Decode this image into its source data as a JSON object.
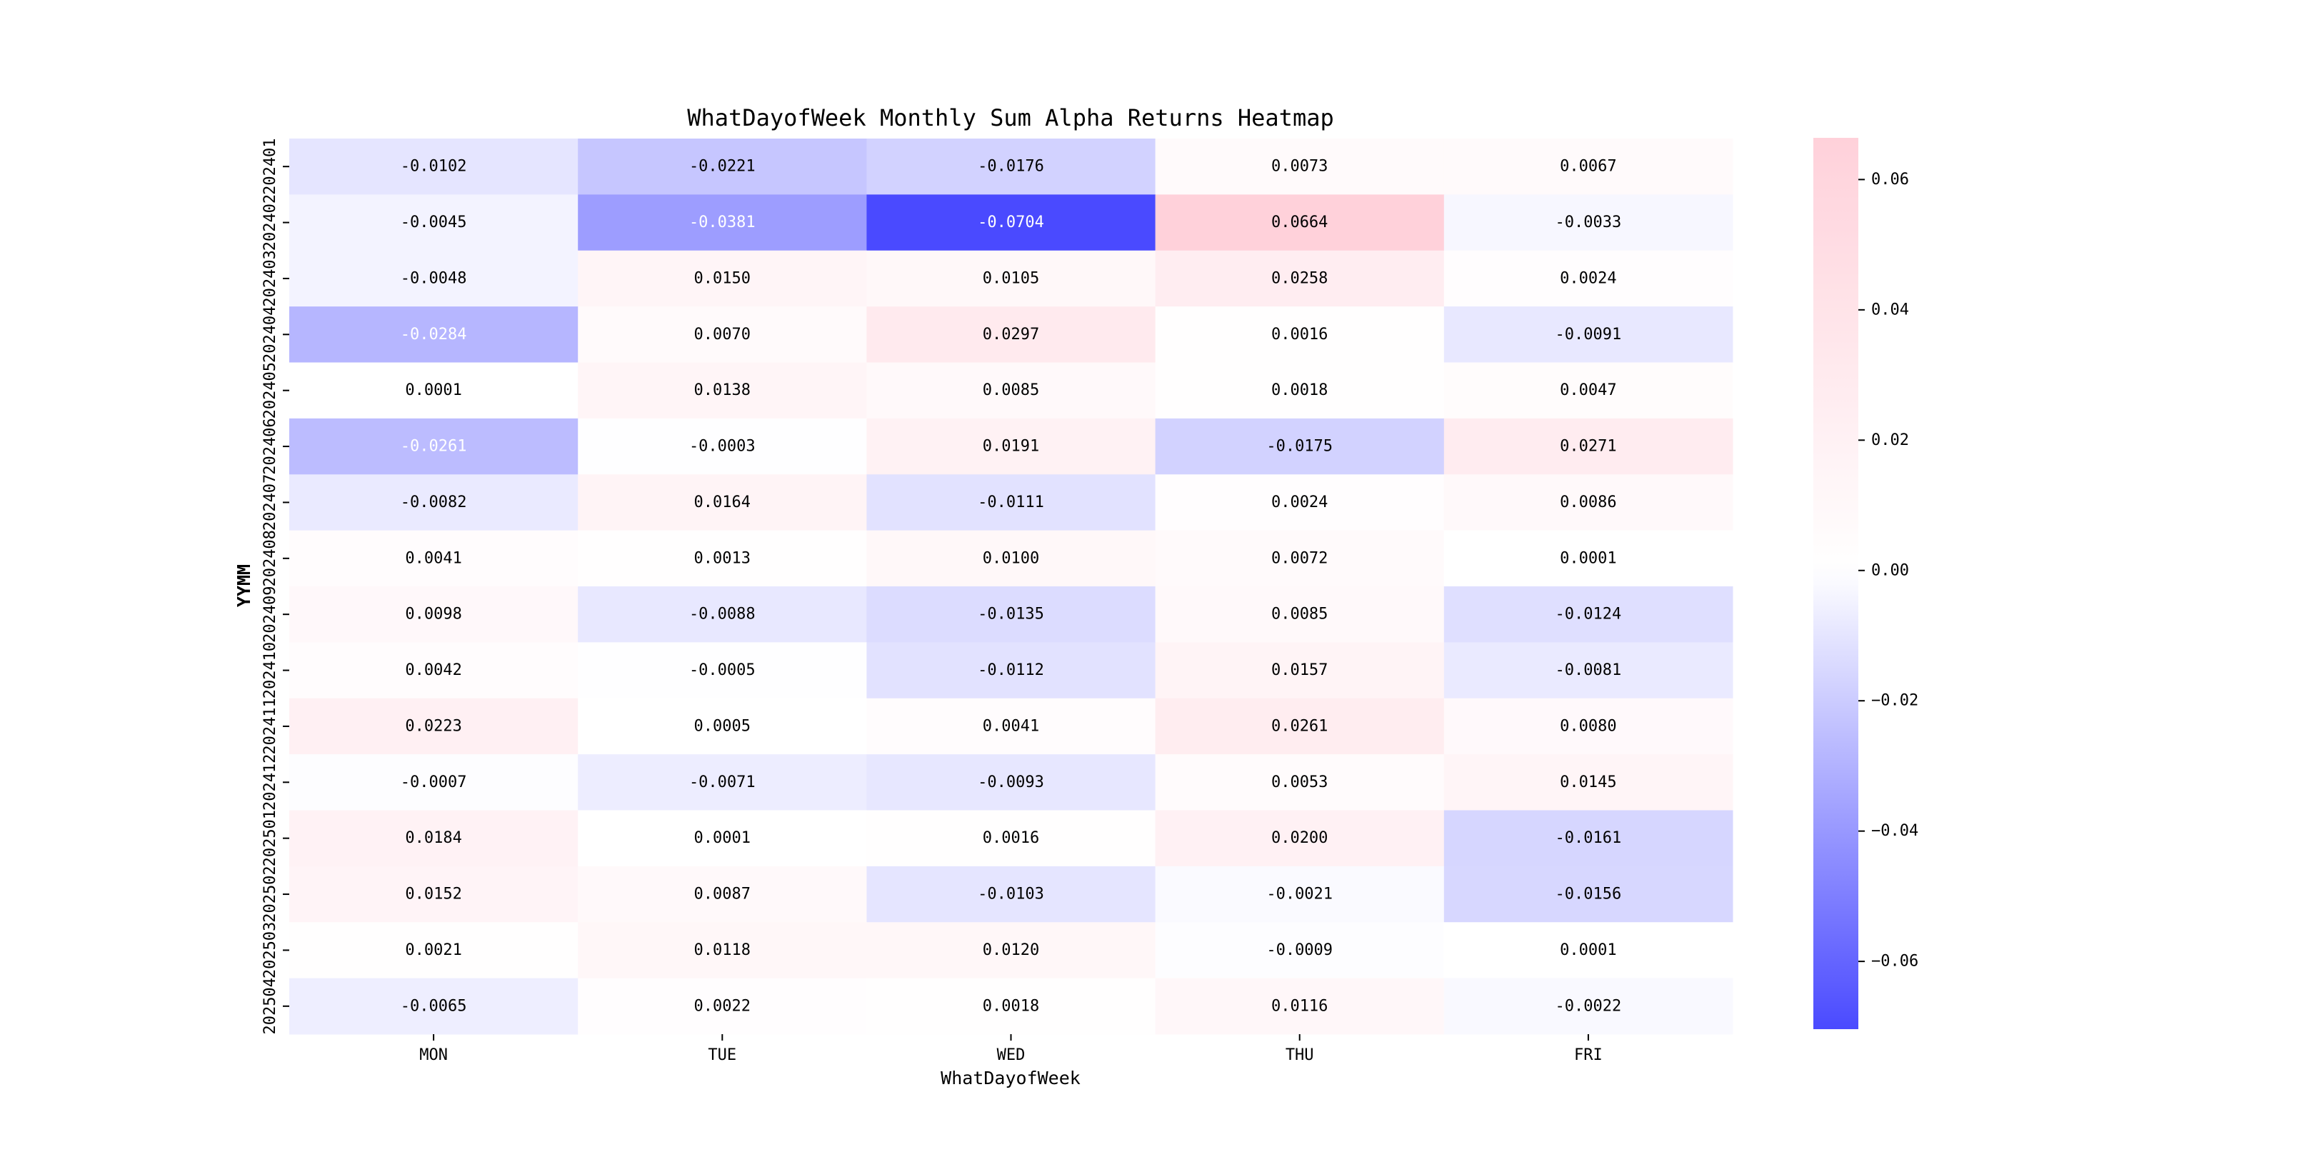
{
  "chart_data": {
    "type": "heatmap",
    "title": "WhatDayofWeek Monthly Sum Alpha Returns Heatmap",
    "xlabel": "WhatDayofWeek",
    "ylabel": "YYMM",
    "columns": [
      "MON",
      "TUE",
      "WED",
      "THU",
      "FRI"
    ],
    "rows": [
      "202401",
      "202402",
      "202403",
      "202404",
      "202405",
      "202406",
      "202407",
      "202408",
      "202409",
      "202410",
      "202411",
      "202412",
      "202501",
      "202502",
      "202503",
      "202504"
    ],
    "values": [
      [
        -0.0102,
        -0.0221,
        -0.0176,
        0.0073,
        0.0067
      ],
      [
        -0.0045,
        -0.0381,
        -0.0704,
        0.0664,
        -0.0033
      ],
      [
        -0.0048,
        0.015,
        0.0105,
        0.0258,
        0.0024
      ],
      [
        -0.0284,
        0.007,
        0.0297,
        0.0016,
        -0.0091
      ],
      [
        0.0001,
        0.0138,
        0.0085,
        0.0018,
        0.0047
      ],
      [
        -0.0261,
        -0.0003,
        0.0191,
        -0.0175,
        0.0271
      ],
      [
        -0.0082,
        0.0164,
        -0.0111,
        0.0024,
        0.0086
      ],
      [
        0.0041,
        0.0013,
        0.01,
        0.0072,
        0.0001
      ],
      [
        0.0098,
        -0.0088,
        -0.0135,
        0.0085,
        -0.0124
      ],
      [
        0.0042,
        -0.0005,
        -0.0112,
        0.0157,
        -0.0081
      ],
      [
        0.0223,
        0.0005,
        0.0041,
        0.0261,
        0.008
      ],
      [
        -0.0007,
        -0.0071,
        -0.0093,
        0.0053,
        0.0145
      ],
      [
        0.0184,
        0.0001,
        0.0016,
        0.02,
        -0.0161
      ],
      [
        0.0152,
        0.0087,
        -0.0103,
        -0.0021,
        -0.0156
      ],
      [
        0.0021,
        0.0118,
        0.012,
        -0.0009,
        0.0001
      ],
      [
        -0.0065,
        0.0022,
        0.0018,
        0.0116,
        -0.0022
      ]
    ],
    "value_format_decimals": 4,
    "vmin": -0.0704,
    "vmax": 0.0664,
    "center": 0,
    "colorbar": {
      "ticks": [
        0.06,
        0.04,
        0.02,
        0.0,
        -0.02,
        -0.04,
        -0.06
      ],
      "tick_labels": [
        "0.06",
        "0.04",
        "0.02",
        "0.00",
        "−0.02",
        "−0.04",
        "−0.06"
      ]
    },
    "colors": {
      "positive_max": "#ffd1da",
      "center": "#ffffff",
      "negative_max": "#4a4aff"
    }
  }
}
